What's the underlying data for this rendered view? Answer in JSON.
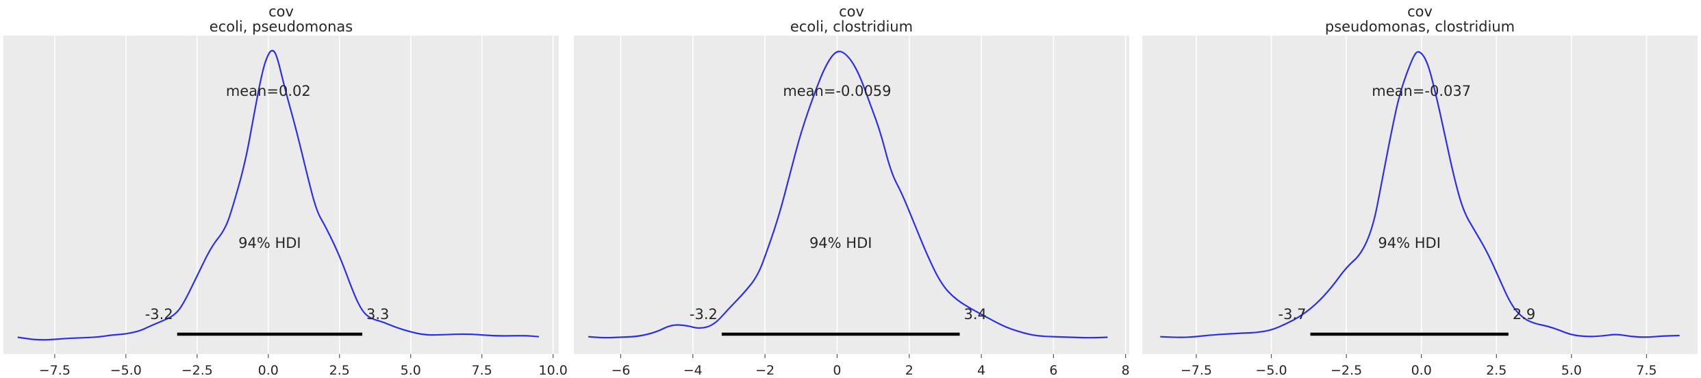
{
  "chart_data": [
    {
      "type": "area",
      "title": "cov",
      "subtitle": "ecoli, pseudomonas",
      "mean_label": "mean=0.02",
      "hdi_label": "94% HDI",
      "hdi": [
        -3.2,
        3.3
      ],
      "hdi_low_label": "-3.2",
      "hdi_high_label": "3.3",
      "xlim": [
        -9.3,
        10.2
      ],
      "ticks": [
        -7.5,
        -5.0,
        -2.5,
        0.0,
        2.5,
        5.0,
        7.5,
        10.0
      ],
      "tick_labels": [
        "−7.5",
        "−5.0",
        "−2.5",
        "0.0",
        "2.5",
        "5.0",
        "7.5",
        "10.0"
      ],
      "grid": true,
      "series": [
        {
          "values": [
            [
              -8.8,
              0.022
            ],
            [
              -8.0,
              0.011
            ],
            [
              -7.0,
              0.019
            ],
            [
              -6.0,
              0.022
            ],
            [
              -5.5,
              0.03
            ],
            [
              -5.0,
              0.033
            ],
            [
              -4.5,
              0.044
            ],
            [
              -4.2,
              0.058
            ],
            [
              -3.8,
              0.074
            ],
            [
              -3.3,
              0.096
            ],
            [
              -3.0,
              0.132
            ],
            [
              -2.5,
              0.23
            ],
            [
              -2.0,
              0.33
            ],
            [
              -1.5,
              0.39
            ],
            [
              -1.2,
              0.48
            ],
            [
              -0.8,
              0.62
            ],
            [
              -0.5,
              0.78
            ],
            [
              -0.2,
              0.93
            ],
            [
              0.0,
              0.985
            ],
            [
              0.15,
              1.0
            ],
            [
              0.3,
              0.98
            ],
            [
              0.6,
              0.86
            ],
            [
              1.0,
              0.72
            ],
            [
              1.4,
              0.56
            ],
            [
              1.7,
              0.45
            ],
            [
              2.0,
              0.4
            ],
            [
              2.5,
              0.3
            ],
            [
              3.0,
              0.17
            ],
            [
              3.3,
              0.11
            ],
            [
              3.6,
              0.085
            ],
            [
              4.0,
              0.075
            ],
            [
              4.5,
              0.055
            ],
            [
              5.0,
              0.04
            ],
            [
              5.5,
              0.03
            ],
            [
              6.0,
              0.03
            ],
            [
              7.0,
              0.034
            ],
            [
              8.0,
              0.026
            ],
            [
              9.0,
              0.028
            ],
            [
              9.5,
              0.024
            ]
          ]
        }
      ]
    },
    {
      "type": "area",
      "title": "cov",
      "subtitle": "ecoli, clostridium",
      "mean_label": "mean=-0.0059",
      "hdi_label": "94% HDI",
      "hdi": [
        -3.2,
        3.4
      ],
      "hdi_low_label": "-3.2",
      "hdi_high_label": "3.4",
      "xlim": [
        -7.3,
        8.1
      ],
      "ticks": [
        -6,
        -4,
        -2,
        0,
        2,
        4,
        6,
        8
      ],
      "tick_labels": [
        "−6",
        "−4",
        "−2",
        "0",
        "2",
        "4",
        "6",
        "8"
      ],
      "grid": true,
      "series": [
        {
          "values": [
            [
              -6.9,
              0.024
            ],
            [
              -6.5,
              0.02
            ],
            [
              -6.0,
              0.022
            ],
            [
              -5.5,
              0.025
            ],
            [
              -5.0,
              0.04
            ],
            [
              -4.6,
              0.065
            ],
            [
              -4.2,
              0.063
            ],
            [
              -3.8,
              0.05
            ],
            [
              -3.4,
              0.065
            ],
            [
              -3.0,
              0.12
            ],
            [
              -2.6,
              0.17
            ],
            [
              -2.2,
              0.23
            ],
            [
              -1.9,
              0.33
            ],
            [
              -1.6,
              0.44
            ],
            [
              -1.3,
              0.58
            ],
            [
              -1.0,
              0.72
            ],
            [
              -0.6,
              0.86
            ],
            [
              -0.3,
              0.95
            ],
            [
              0.0,
              1.0
            ],
            [
              0.3,
              0.98
            ],
            [
              0.6,
              0.92
            ],
            [
              0.9,
              0.82
            ],
            [
              1.2,
              0.72
            ],
            [
              1.5,
              0.58
            ],
            [
              1.8,
              0.51
            ],
            [
              2.1,
              0.42
            ],
            [
              2.5,
              0.3
            ],
            [
              2.9,
              0.2
            ],
            [
              3.3,
              0.15
            ],
            [
              3.7,
              0.12
            ],
            [
              4.0,
              0.1
            ],
            [
              4.3,
              0.08
            ],
            [
              4.7,
              0.055
            ],
            [
              5.2,
              0.035
            ],
            [
              5.6,
              0.026
            ],
            [
              6.0,
              0.024
            ],
            [
              6.5,
              0.022
            ],
            [
              7.0,
              0.02
            ],
            [
              7.5,
              0.022
            ]
          ]
        }
      ]
    },
    {
      "type": "area",
      "title": "cov",
      "subtitle": "pseudomonas, clostridium",
      "mean_label": "mean=-0.037",
      "hdi_label": "94% HDI",
      "hdi": [
        -3.7,
        2.9
      ],
      "hdi_low_label": "-3.7",
      "hdi_high_label": "2.9",
      "xlim": [
        -9.3,
        9.2
      ],
      "ticks": [
        -7.5,
        -5.0,
        -2.5,
        0.0,
        2.5,
        5.0,
        7.5
      ],
      "tick_labels": [
        "−7.5",
        "−5.0",
        "−2.5",
        "0.0",
        "2.5",
        "5.0",
        "7.5"
      ],
      "grid": true,
      "series": [
        {
          "values": [
            [
              -8.7,
              0.024
            ],
            [
              -8.0,
              0.021
            ],
            [
              -7.5,
              0.024
            ],
            [
              -7.0,
              0.03
            ],
            [
              -6.0,
              0.036
            ],
            [
              -5.5,
              0.038
            ],
            [
              -5.0,
              0.046
            ],
            [
              -4.5,
              0.068
            ],
            [
              -4.0,
              0.095
            ],
            [
              -3.5,
              0.135
            ],
            [
              -3.0,
              0.19
            ],
            [
              -2.5,
              0.26
            ],
            [
              -2.0,
              0.305
            ],
            [
              -1.6,
              0.4
            ],
            [
              -1.3,
              0.56
            ],
            [
              -1.0,
              0.72
            ],
            [
              -0.7,
              0.86
            ],
            [
              -0.3,
              0.97
            ],
            [
              -0.1,
              1.0
            ],
            [
              0.2,
              0.96
            ],
            [
              0.5,
              0.84
            ],
            [
              0.8,
              0.7
            ],
            [
              1.1,
              0.56
            ],
            [
              1.4,
              0.45
            ],
            [
              1.8,
              0.38
            ],
            [
              2.2,
              0.31
            ],
            [
              2.6,
              0.22
            ],
            [
              3.0,
              0.13
            ],
            [
              3.4,
              0.085
            ],
            [
              3.8,
              0.068
            ],
            [
              4.2,
              0.06
            ],
            [
              4.6,
              0.046
            ],
            [
              5.0,
              0.03
            ],
            [
              5.5,
              0.024
            ],
            [
              6.0,
              0.026
            ],
            [
              6.5,
              0.033
            ],
            [
              7.0,
              0.024
            ],
            [
              7.5,
              0.022
            ],
            [
              8.0,
              0.026
            ],
            [
              8.6,
              0.028
            ]
          ]
        }
      ]
    }
  ],
  "colors": {
    "panel_bg": "#ebebeb",
    "grid": "#ffffff",
    "curve": "#2a2eec",
    "hdi_bar": "#000000",
    "text": "#262626"
  }
}
